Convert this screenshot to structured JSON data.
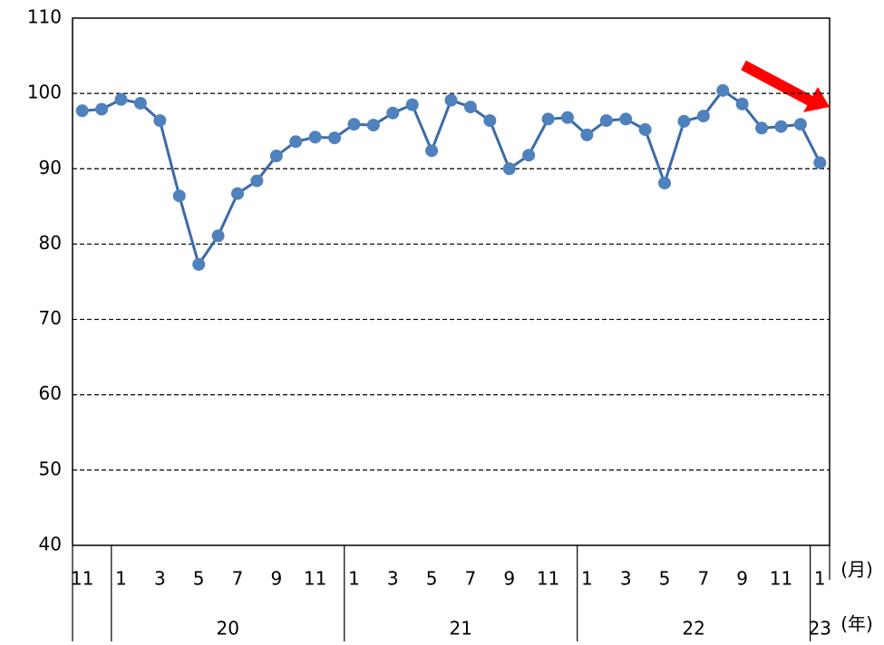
{
  "chart_data": {
    "type": "line",
    "categories": [
      "11",
      null,
      "1",
      null,
      "3",
      null,
      "5",
      null,
      "7",
      null,
      "9",
      null,
      "11",
      null,
      "1",
      null,
      "3",
      null,
      "5",
      null,
      "7",
      null,
      "9",
      null,
      "11",
      null,
      "1",
      null,
      "3",
      null,
      "5",
      null,
      "7",
      null,
      "9",
      null,
      "11",
      null,
      "1"
    ],
    "series": [
      {
        "name": null,
        "color": "#4f81bd",
        "values": [
          97.7,
          97.9,
          99.2,
          98.7,
          96.4,
          86.4,
          77.3,
          81.1,
          86.7,
          88.4,
          91.7,
          93.6,
          94.2,
          94.1,
          95.9,
          95.8,
          97.4,
          98.5,
          92.4,
          99.1,
          98.2,
          96.4,
          90.0,
          91.8,
          96.6,
          96.8,
          94.5,
          96.4,
          96.6,
          95.2,
          88.1,
          96.3,
          97.0,
          100.4,
          98.6,
          95.4,
          95.6,
          95.9,
          90.8
        ]
      }
    ],
    "year_groups": [
      {
        "label": null,
        "months": 2
      },
      {
        "label": "20",
        "months": 12
      },
      {
        "label": "21",
        "months": 12
      },
      {
        "label": "22",
        "months": 12
      },
      {
        "label": "23",
        "months": 1
      }
    ],
    "x_label": "(月)",
    "group_label": "(年)",
    "ylim": [
      40,
      110
    ],
    "yticks": [
      40,
      50,
      60,
      70,
      80,
      90,
      100,
      110
    ],
    "grid": true
  }
}
